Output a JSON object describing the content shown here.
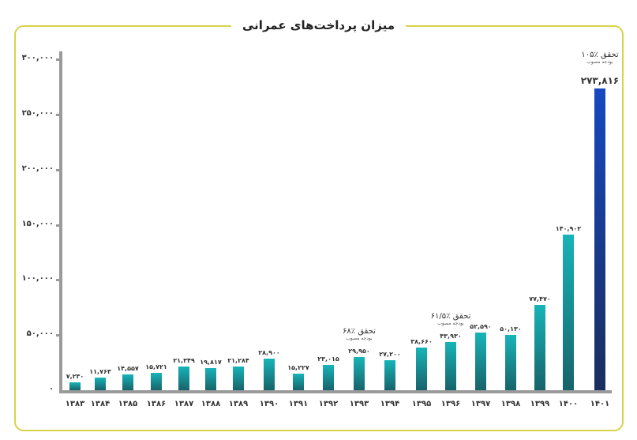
{
  "title": "میزان پرداخت‌های عمرانی",
  "colors": {
    "frame": "#d8d24a",
    "bar_teal_top": "#17b4b8",
    "bar_teal_bottom": "#17636a",
    "bar_blue_top": "#1648c0",
    "bar_blue_bottom": "#1a2e5e",
    "axis": "#9a9a9a"
  },
  "y_ticks": [
    {
      "label": "۳۰۰,۰۰۰",
      "value": 300000
    },
    {
      "label": "۲۵۰,۰۰۰",
      "value": 250000
    },
    {
      "label": "۲۰۰,۰۰۰",
      "value": 200000
    },
    {
      "label": "۱۵۰,۰۰۰",
      "value": 150000
    },
    {
      "label": "۱۰۰,۰۰۰",
      "value": 100000
    },
    {
      "label": "۵۰,۰۰۰",
      "value": 50000
    },
    {
      "label": "۰",
      "value": 0
    }
  ],
  "bars": [
    {
      "year": "۱۳۸۳",
      "label": "۷,۲۳۰"
    },
    {
      "year": "۱۳۸۴",
      "label": "۱۱,۷۶۳"
    },
    {
      "year": "۱۳۸۵",
      "label": "۱۴,۵۵۷"
    },
    {
      "year": "۱۳۸۶",
      "label": "۱۵,۷۲۱"
    },
    {
      "year": "۱۳۸۷",
      "label": "۲۱,۳۴۹"
    },
    {
      "year": "۱۳۸۸",
      "label": "۱۹,۸۱۷"
    },
    {
      "year": "۱۳۸۹",
      "label": "۲۱,۲۸۴"
    },
    {
      "year": "۱۳۹۰",
      "label": "۲۸,۹۰۰"
    },
    {
      "year": "۱۳۹۱",
      "label": "۱۵,۲۲۷"
    },
    {
      "year": "۱۳۹۲",
      "label": "۲۳,۰۱۵"
    },
    {
      "year": "۱۳۹۳",
      "label": "۲۹,۹۵۰"
    },
    {
      "year": "۱۳۹۴",
      "label": "۲۷,۲۰۰"
    },
    {
      "year": "۱۳۹۵",
      "label": "۳۸,۶۶۰"
    },
    {
      "year": "۱۳۹۶",
      "label": "۴۳,۹۳۰"
    },
    {
      "year": "۱۳۹۷",
      "label": "۵۲,۵۹۰"
    },
    {
      "year": "۱۳۹۸",
      "label": "۵۰,۱۳۰"
    },
    {
      "year": "۱۳۹۹",
      "label": "۷۷,۴۷۰"
    },
    {
      "year": "۱۴۰۰",
      "label": "۱۴۰,۹۰۲"
    },
    {
      "year": "۱۴۰۱",
      "label": "۲۷۳,۸۱۶"
    }
  ],
  "annotations": [
    {
      "year": "۱۳۹۳",
      "main": "تحقق ٪۶۸",
      "sub": "بودجه مصوب"
    },
    {
      "year": "۱۳۹۶",
      "main": "تحقق ٪۶۱/۵",
      "sub": "بودجه مصوب"
    },
    {
      "year": "۱۴۰۱",
      "main": "تحقق ٪۱۰۵",
      "sub": "بودجه مصوب"
    }
  ],
  "chart_data": {
    "type": "bar",
    "title": "میزان پرداخت‌های عمرانی",
    "xlabel": "",
    "ylabel": "",
    "ylim": [
      0,
      300000
    ],
    "grid": false,
    "legend": null,
    "categories": [
      "1383",
      "1384",
      "1385",
      "1386",
      "1387",
      "1388",
      "1389",
      "1390",
      "1391",
      "1392",
      "1393",
      "1394",
      "1395",
      "1396",
      "1397",
      "1398",
      "1399",
      "1400",
      "1401"
    ],
    "values": [
      7230,
      11763,
      14557,
      15721,
      21349,
      19817,
      21284,
      28900,
      15227,
      23015,
      29950,
      27200,
      38660,
      43930,
      52590,
      50130,
      77470,
      140902,
      273816
    ],
    "y_tick_labels": [
      "0",
      "50,000",
      "100,000",
      "150,000",
      "200,000",
      "250,000",
      "300,000"
    ],
    "annotations": [
      {
        "category": "1393",
        "text": "تحقق ٪۶۸ بودجه مصوب"
      },
      {
        "category": "1396",
        "text": "تحقق ٪۶۱/۵ بودجه مصوب"
      },
      {
        "category": "1401",
        "text": "تحقق ٪۱۰۵ بودجه مصوب"
      }
    ]
  }
}
